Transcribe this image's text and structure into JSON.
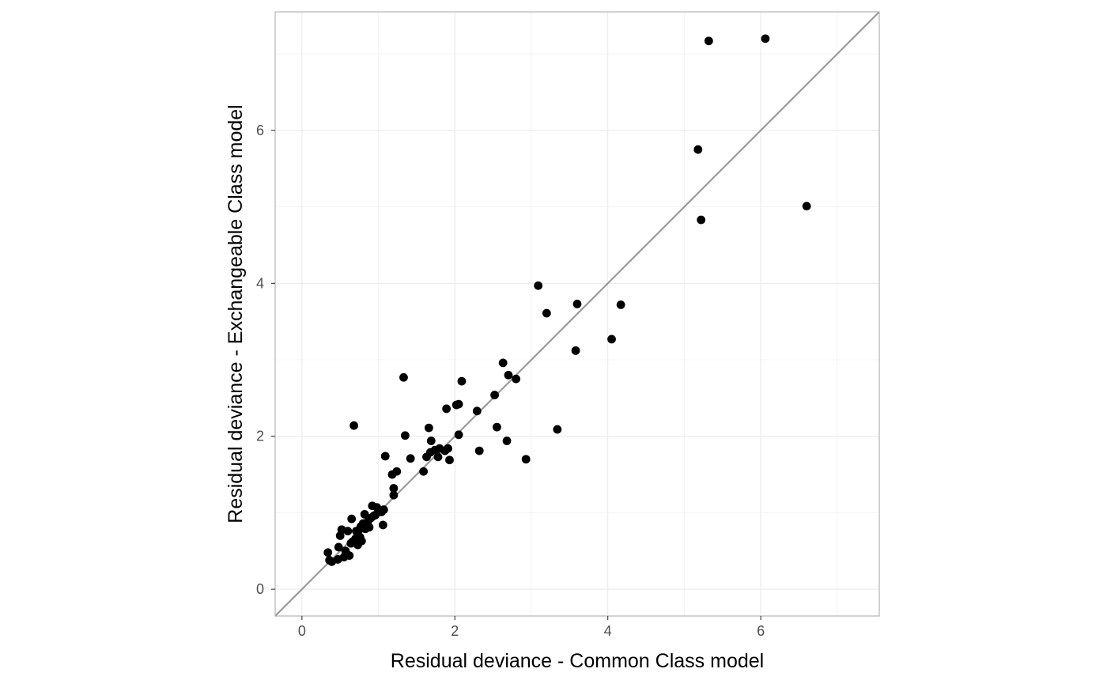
{
  "chart_data": {
    "type": "scatter",
    "xlabel": "Residual deviance - Common Class model",
    "ylabel": "Residual deviance - Exchangeable Class model",
    "xlim": [
      -0.35,
      7.55
    ],
    "ylim": [
      -0.35,
      7.55
    ],
    "x_ticks": [
      0,
      2,
      4,
      6
    ],
    "y_ticks": [
      0,
      2,
      4,
      6
    ],
    "grid": true,
    "reference_line": {
      "slope": 1,
      "intercept": 0,
      "color": "#999999"
    },
    "point_color": "#000000",
    "points": [
      [
        0.34,
        0.48
      ],
      [
        0.36,
        0.38
      ],
      [
        0.39,
        0.36
      ],
      [
        0.47,
        0.39
      ],
      [
        0.5,
        0.7
      ],
      [
        0.48,
        0.55
      ],
      [
        0.52,
        0.78
      ],
      [
        0.55,
        0.42
      ],
      [
        0.57,
        0.5
      ],
      [
        0.6,
        0.76
      ],
      [
        0.6,
        0.45
      ],
      [
        0.62,
        0.44
      ],
      [
        0.64,
        0.6
      ],
      [
        0.65,
        0.92
      ],
      [
        0.66,
        0.62
      ],
      [
        0.68,
        2.14
      ],
      [
        0.7,
        0.66
      ],
      [
        0.71,
        0.76
      ],
      [
        0.73,
        0.58
      ],
      [
        0.74,
        0.7
      ],
      [
        0.75,
        0.78
      ],
      [
        0.76,
        0.68
      ],
      [
        0.77,
        0.82
      ],
      [
        0.78,
        0.63
      ],
      [
        0.8,
        0.86
      ],
      [
        0.82,
        0.98
      ],
      [
        0.83,
        0.79
      ],
      [
        0.86,
        0.88
      ],
      [
        0.88,
        0.81
      ],
      [
        0.9,
        0.93
      ],
      [
        0.92,
        1.09
      ],
      [
        0.94,
        0.96
      ],
      [
        0.96,
        0.97
      ],
      [
        0.98,
        1.07
      ],
      [
        1.0,
        1.04
      ],
      [
        1.04,
        1.01
      ],
      [
        1.06,
        0.84
      ],
      [
        1.07,
        1.04
      ],
      [
        1.09,
        1.74
      ],
      [
        1.18,
        1.5
      ],
      [
        1.2,
        1.32
      ],
      [
        1.2,
        1.23
      ],
      [
        1.24,
        1.54
      ],
      [
        1.33,
        2.77
      ],
      [
        1.35,
        2.01
      ],
      [
        1.42,
        1.71
      ],
      [
        1.59,
        1.54
      ],
      [
        1.63,
        1.73
      ],
      [
        1.66,
        2.11
      ],
      [
        1.68,
        1.79
      ],
      [
        1.69,
        1.94
      ],
      [
        1.74,
        1.82
      ],
      [
        1.78,
        1.73
      ],
      [
        1.8,
        1.84
      ],
      [
        1.87,
        1.81
      ],
      [
        1.89,
        2.36
      ],
      [
        1.91,
        1.84
      ],
      [
        1.93,
        1.69
      ],
      [
        2.02,
        2.41
      ],
      [
        2.05,
        2.42
      ],
      [
        2.05,
        2.02
      ],
      [
        2.09,
        2.72
      ],
      [
        2.29,
        2.33
      ],
      [
        2.32,
        1.81
      ],
      [
        2.52,
        2.54
      ],
      [
        2.55,
        2.12
      ],
      [
        2.63,
        2.96
      ],
      [
        2.68,
        1.94
      ],
      [
        2.7,
        2.8
      ],
      [
        2.8,
        2.75
      ],
      [
        2.93,
        1.7
      ],
      [
        3.09,
        3.97
      ],
      [
        3.2,
        3.61
      ],
      [
        3.34,
        2.09
      ],
      [
        3.58,
        3.12
      ],
      [
        3.6,
        3.73
      ],
      [
        4.05,
        3.27
      ],
      [
        4.17,
        3.72
      ],
      [
        5.18,
        5.75
      ],
      [
        5.22,
        4.83
      ],
      [
        5.32,
        7.17
      ],
      [
        6.06,
        7.2
      ],
      [
        6.6,
        5.01
      ]
    ]
  }
}
